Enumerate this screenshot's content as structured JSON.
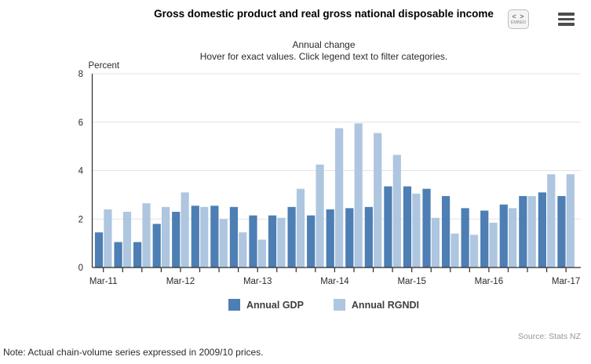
{
  "header": {
    "title": "Gross domestic product and real gross national disposable income",
    "embed_button": {
      "glyph": "< >",
      "label": "EMBED"
    }
  },
  "subtitle": {
    "line1": "Annual change",
    "line2": "Hover for exact values. Click legend text to filter categories."
  },
  "chart_data": {
    "type": "bar",
    "title": "Annual change",
    "xlabel": "",
    "ylabel": "Percent",
    "ylim": [
      0,
      8
    ],
    "yticks": [
      0,
      2,
      4,
      6,
      8
    ],
    "grid": true,
    "legend_position": "bottom",
    "categories": [
      "Mar-11",
      "Jun-11",
      "Sep-11",
      "Dec-11",
      "Mar-12",
      "Jun-12",
      "Sep-12",
      "Dec-12",
      "Mar-13",
      "Jun-13",
      "Sep-13",
      "Dec-13",
      "Mar-14",
      "Jun-14",
      "Sep-14",
      "Dec-14",
      "Mar-15",
      "Jun-15",
      "Sep-15",
      "Dec-15",
      "Mar-16",
      "Jun-16",
      "Sep-16",
      "Dec-16",
      "Mar-17"
    ],
    "x_tick_labels_shown": [
      "Mar-11",
      "Mar-12",
      "Mar-13",
      "Mar-14",
      "Mar-15",
      "Mar-16",
      "Mar-17"
    ],
    "series": [
      {
        "name": "Annual GDP",
        "color": "#4d7eb4",
        "values": [
          1.45,
          1.05,
          1.05,
          1.8,
          2.3,
          2.55,
          2.55,
          2.5,
          2.15,
          2.15,
          2.5,
          2.15,
          2.4,
          2.45,
          2.5,
          3.35,
          3.35,
          3.25,
          2.95,
          2.45,
          2.35,
          2.6,
          2.95,
          3.1,
          2.95
        ]
      },
      {
        "name": "Annual RGNDI",
        "color": "#aec6df",
        "values": [
          2.4,
          2.3,
          2.65,
          2.5,
          3.1,
          2.5,
          2.0,
          1.45,
          1.15,
          2.05,
          3.25,
          4.25,
          5.75,
          5.95,
          5.55,
          4.65,
          3.05,
          2.05,
          1.4,
          1.35,
          1.85,
          2.45,
          2.95,
          3.85,
          3.85
        ]
      }
    ],
    "axis_color": "#2b2b2b",
    "gridline_color": "#e4e4e4",
    "value_unit": "%"
  },
  "footer": {
    "source": "Source: Stats NZ",
    "note": "Note: Actual chain-volume series expressed in 2009/10 prices."
  }
}
